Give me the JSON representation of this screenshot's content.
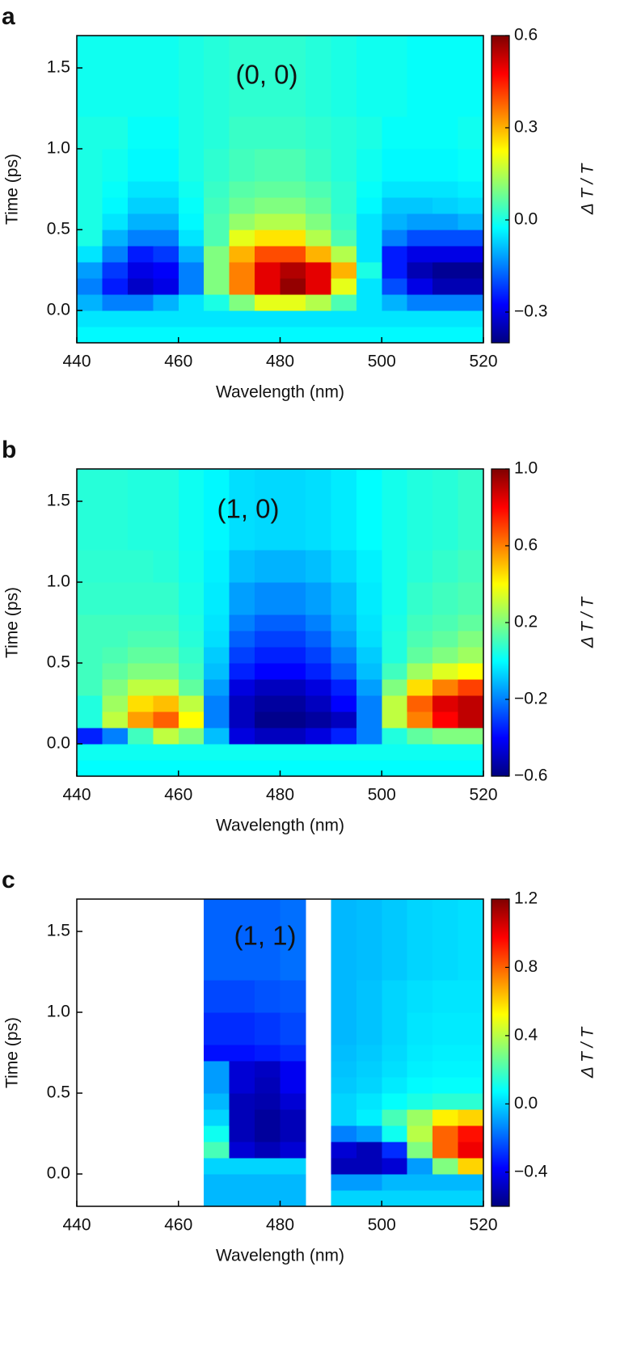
{
  "chart_data": [
    {
      "type": "heatmap",
      "panel_label": "a",
      "annotation": "(0, 0)",
      "xlabel": "Wavelength (nm)",
      "ylabel": "Time (ps)",
      "colorbar_label": "Δ T / T",
      "colormap": "jet",
      "x": [
        440,
        445,
        450,
        455,
        460,
        465,
        470,
        475,
        480,
        485,
        490,
        495,
        500,
        505,
        510,
        515,
        520
      ],
      "y": [
        -0.2,
        -0.1,
        0,
        0.1,
        0.2,
        0.3,
        0.4,
        0.5,
        0.6,
        0.7,
        0.8,
        1.0,
        1.2,
        1.7
      ],
      "z": [
        [
          -0.03,
          -0.03,
          -0.03,
          -0.03,
          -0.03,
          -0.03,
          -0.03,
          -0.03,
          -0.03,
          -0.03,
          -0.03,
          -0.03,
          -0.03,
          -0.03,
          -0.03,
          -0.03
        ],
        [
          -0.05,
          -0.05,
          -0.05,
          -0.05,
          -0.05,
          -0.05,
          -0.05,
          -0.05,
          -0.05,
          -0.05,
          -0.05,
          -0.05,
          -0.05,
          -0.05,
          -0.05,
          -0.05
        ],
        [
          -0.1,
          -0.15,
          -0.15,
          -0.1,
          -0.05,
          0,
          0.1,
          0.2,
          0.2,
          0.15,
          0.05,
          -0.05,
          -0.1,
          -0.15,
          -0.15,
          -0.15
        ],
        [
          -0.15,
          -0.25,
          -0.33,
          -0.3,
          -0.15,
          0.1,
          0.35,
          0.5,
          0.58,
          0.5,
          0.2,
          -0.05,
          -0.2,
          -0.3,
          -0.35,
          -0.35
        ],
        [
          -0.12,
          -0.22,
          -0.3,
          -0.28,
          -0.15,
          0.1,
          0.35,
          0.5,
          0.55,
          0.5,
          0.3,
          0,
          -0.25,
          -0.35,
          -0.38,
          -0.38
        ],
        [
          -0.05,
          -0.15,
          -0.25,
          -0.22,
          -0.1,
          0.1,
          0.3,
          0.4,
          0.4,
          0.3,
          0.15,
          -0.05,
          -0.25,
          -0.3,
          -0.3,
          -0.3
        ],
        [
          0,
          -0.1,
          -0.15,
          -0.15,
          -0.05,
          0.05,
          0.2,
          0.25,
          0.25,
          0.15,
          0.05,
          -0.05,
          -0.15,
          -0.2,
          -0.2,
          -0.2
        ],
        [
          0,
          -0.05,
          -0.1,
          -0.1,
          -0.03,
          0.05,
          0.12,
          0.15,
          0.15,
          0.1,
          0.03,
          -0.05,
          -0.1,
          -0.12,
          -0.12,
          -0.1
        ],
        [
          0,
          -0.03,
          -0.07,
          -0.07,
          -0.02,
          0.04,
          0.08,
          0.1,
          0.1,
          0.07,
          0.02,
          -0.03,
          -0.08,
          -0.08,
          -0.07,
          -0.06
        ],
        [
          0,
          -0.02,
          -0.05,
          -0.05,
          -0.01,
          0.03,
          0.06,
          0.07,
          0.07,
          0.05,
          0.02,
          -0.02,
          -0.05,
          -0.05,
          -0.05,
          -0.04
        ],
        [
          0,
          -0.01,
          -0.03,
          -0.03,
          0,
          0.02,
          0.04,
          0.05,
          0.05,
          0.03,
          0.01,
          -0.01,
          -0.03,
          -0.03,
          -0.03,
          -0.02
        ],
        [
          0,
          0,
          -0.02,
          -0.02,
          0,
          0.01,
          0.03,
          0.03,
          0.03,
          0.02,
          0.01,
          0,
          -0.02,
          -0.02,
          -0.02,
          -0.01
        ],
        [
          -0.01,
          -0.01,
          -0.01,
          -0.01,
          0,
          0.01,
          0.02,
          0.02,
          0.02,
          0.01,
          0,
          -0.01,
          -0.01,
          -0.02,
          -0.02,
          -0.02
        ]
      ],
      "xlim": [
        440,
        520
      ],
      "ylim": [
        -0.2,
        1.7
      ],
      "zlim": [
        -0.4,
        0.6
      ],
      "xticks": [
        440,
        460,
        480,
        500,
        520
      ],
      "yticks": [
        {
          "value": 0,
          "label": "0.0"
        },
        0.5,
        {
          "value": 1,
          "label": "1.0"
        },
        1.5
      ],
      "colorbar_ticks": [
        {
          "value": -0.3,
          "label": "−0.3"
        },
        {
          "value": 0,
          "label": "0.0"
        },
        0.3,
        0.6
      ]
    },
    {
      "type": "heatmap",
      "panel_label": "b",
      "annotation": "(1, 0)",
      "xlabel": "Wavelength (nm)",
      "ylabel": "Time (ps)",
      "colorbar_label": "Δ T / T",
      "colormap": "jet",
      "x": [
        440,
        445,
        450,
        455,
        460,
        465,
        470,
        475,
        480,
        485,
        490,
        495,
        500,
        505,
        510,
        515,
        520
      ],
      "y": [
        -0.2,
        -0.1,
        0,
        0.1,
        0.2,
        0.3,
        0.4,
        0.5,
        0.6,
        0.7,
        0.8,
        1.0,
        1.2,
        1.7
      ],
      "z": [
        [
          0,
          0,
          0,
          0,
          0,
          0,
          0,
          0,
          0,
          0,
          0,
          0,
          0,
          0,
          0,
          0
        ],
        [
          0.02,
          0.02,
          0.02,
          0.02,
          0.02,
          0.02,
          0.02,
          0.02,
          0.02,
          0.02,
          0.02,
          0.02,
          0.02,
          0.02,
          0.02,
          0.02
        ],
        [
          -0.35,
          -0.2,
          0.1,
          0.3,
          0.2,
          -0.1,
          -0.45,
          -0.5,
          -0.5,
          -0.45,
          -0.35,
          -0.2,
          0.05,
          0.15,
          0.2,
          0.2
        ],
        [
          0.05,
          0.3,
          0.55,
          0.65,
          0.4,
          -0.2,
          -0.5,
          -0.58,
          -0.58,
          -0.55,
          -0.5,
          -0.2,
          0.3,
          0.6,
          0.8,
          0.9
        ],
        [
          0.05,
          0.25,
          0.45,
          0.5,
          0.3,
          -0.2,
          -0.5,
          -0.55,
          -0.55,
          -0.5,
          -0.4,
          -0.2,
          0.3,
          0.65,
          0.85,
          0.9
        ],
        [
          0.1,
          0.2,
          0.3,
          0.3,
          0.15,
          -0.15,
          -0.45,
          -0.5,
          -0.5,
          -0.45,
          -0.35,
          -0.15,
          0.2,
          0.45,
          0.6,
          0.7
        ],
        [
          0.1,
          0.15,
          0.2,
          0.2,
          0.1,
          -0.1,
          -0.35,
          -0.4,
          -0.4,
          -0.35,
          -0.25,
          -0.1,
          0.1,
          0.25,
          0.35,
          0.4
        ],
        [
          0.1,
          0.12,
          0.15,
          0.15,
          0.08,
          -0.08,
          -0.3,
          -0.35,
          -0.35,
          -0.3,
          -0.2,
          -0.08,
          0.05,
          0.15,
          0.2,
          0.25
        ],
        [
          0.1,
          0.1,
          0.12,
          0.12,
          0.06,
          -0.05,
          -0.25,
          -0.3,
          -0.3,
          -0.25,
          -0.15,
          -0.05,
          0.05,
          0.12,
          0.15,
          0.2
        ],
        [
          0.1,
          0.1,
          0.1,
          0.1,
          0.05,
          -0.04,
          -0.2,
          -0.25,
          -0.25,
          -0.2,
          -0.12,
          -0.04,
          0.04,
          0.1,
          0.12,
          0.15
        ],
        [
          0.08,
          0.08,
          0.08,
          0.08,
          0.04,
          -0.03,
          -0.15,
          -0.18,
          -0.18,
          -0.15,
          -0.1,
          -0.03,
          0.03,
          0.08,
          0.1,
          0.12
        ],
        [
          0.07,
          0.07,
          0.07,
          0.06,
          0.03,
          -0.02,
          -0.1,
          -0.12,
          -0.12,
          -0.1,
          -0.06,
          -0.02,
          0.03,
          0.06,
          0.08,
          0.1
        ],
        [
          0.06,
          0.06,
          0.05,
          0.05,
          0.02,
          -0.01,
          -0.05,
          -0.06,
          -0.06,
          -0.05,
          -0.03,
          0,
          0.03,
          0.05,
          0.06,
          0.08
        ]
      ],
      "xlim": [
        440,
        520
      ],
      "ylim": [
        -0.2,
        1.7
      ],
      "zlim": [
        -0.6,
        1.0
      ],
      "xticks": [
        440,
        460,
        480,
        500,
        520
      ],
      "yticks": [
        {
          "value": 0,
          "label": "0.0"
        },
        0.5,
        {
          "value": 1,
          "label": "1.0"
        },
        1.5
      ],
      "colorbar_ticks": [
        {
          "value": -0.6,
          "label": "−0.6"
        },
        {
          "value": -0.2,
          "label": "−0.2"
        },
        0.2,
        0.6,
        {
          "value": 1,
          "label": "1.0"
        }
      ]
    },
    {
      "type": "heatmap",
      "panel_label": "c",
      "annotation": "(1, 1)",
      "xlabel": "Wavelength (nm)",
      "ylabel": "Time (ps)",
      "colorbar_label": "Δ T / T",
      "colormap": "jet",
      "x": [
        440,
        445,
        450,
        455,
        460,
        465,
        470,
        475,
        480,
        485,
        490,
        495,
        500,
        505,
        510,
        515,
        520
      ],
      "y": [
        -0.2,
        -0.1,
        0,
        0.1,
        0.2,
        0.3,
        0.4,
        0.5,
        0.6,
        0.7,
        0.8,
        1.0,
        1.2,
        1.7
      ],
      "z": [
        [
          null,
          null,
          null,
          null,
          null,
          -0.05,
          -0.05,
          -0.05,
          -0.05,
          null,
          0,
          0,
          0,
          0,
          0,
          0
        ],
        [
          null,
          null,
          null,
          null,
          null,
          -0.05,
          -0.05,
          -0.05,
          -0.05,
          null,
          -0.1,
          -0.1,
          -0.05,
          -0.05,
          -0.05,
          -0.05
        ],
        [
          null,
          null,
          null,
          null,
          null,
          0,
          0,
          0,
          0,
          null,
          -0.5,
          -0.5,
          -0.45,
          -0.1,
          0.3,
          0.6
        ],
        [
          null,
          null,
          null,
          null,
          null,
          0.2,
          -0.45,
          -0.5,
          -0.45,
          null,
          -0.45,
          -0.5,
          -0.3,
          0.3,
          0.8,
          1.0
        ],
        [
          null,
          null,
          null,
          null,
          null,
          0.1,
          -0.5,
          -0.55,
          -0.5,
          null,
          -0.15,
          -0.1,
          0.1,
          0.4,
          0.8,
          0.95
        ],
        [
          null,
          null,
          null,
          null,
          null,
          0,
          -0.5,
          -0.55,
          -0.5,
          null,
          0,
          0.05,
          0.2,
          0.35,
          0.55,
          0.6
        ],
        [
          null,
          null,
          null,
          null,
          null,
          -0.05,
          -0.5,
          -0.52,
          -0.45,
          null,
          0,
          0.03,
          0.08,
          0.12,
          0.15,
          0.15
        ],
        [
          null,
          null,
          null,
          null,
          null,
          -0.1,
          -0.45,
          -0.5,
          -0.4,
          null,
          -0.02,
          0,
          0.04,
          0.07,
          0.08,
          0.08
        ],
        [
          null,
          null,
          null,
          null,
          null,
          -0.1,
          -0.45,
          -0.48,
          -0.4,
          null,
          -0.03,
          -0.01,
          0.02,
          0.05,
          0.06,
          0.06
        ],
        [
          null,
          null,
          null,
          null,
          null,
          -0.35,
          -0.35,
          -0.33,
          -0.3,
          null,
          -0.04,
          -0.02,
          0.01,
          0.04,
          0.05,
          0.05
        ],
        [
          null,
          null,
          null,
          null,
          null,
          -0.3,
          -0.3,
          -0.28,
          -0.25,
          null,
          -0.05,
          -0.03,
          0,
          0.03,
          0.04,
          0.04
        ],
        [
          null,
          null,
          null,
          null,
          null,
          -0.25,
          -0.25,
          -0.23,
          -0.22,
          null,
          -0.05,
          -0.03,
          0,
          0.02,
          0.03,
          0.03
        ],
        [
          null,
          null,
          null,
          null,
          null,
          -0.2,
          -0.2,
          -0.2,
          -0.18,
          null,
          -0.05,
          -0.04,
          -0.02,
          0,
          0.01,
          0.02
        ]
      ],
      "xlim": [
        440,
        520
      ],
      "ylim": [
        -0.2,
        1.7
      ],
      "zlim": [
        -0.6,
        1.2
      ],
      "xticks": [
        440,
        460,
        480,
        500,
        520
      ],
      "yticks": [
        {
          "value": 0,
          "label": "0.0"
        },
        0.5,
        {
          "value": 1,
          "label": "1.0"
        },
        1.5
      ],
      "colorbar_ticks": [
        {
          "value": -0.4,
          "label": "−0.4"
        },
        {
          "value": 0,
          "label": "0.0"
        },
        0.4,
        0.8,
        1.2
      ]
    }
  ]
}
